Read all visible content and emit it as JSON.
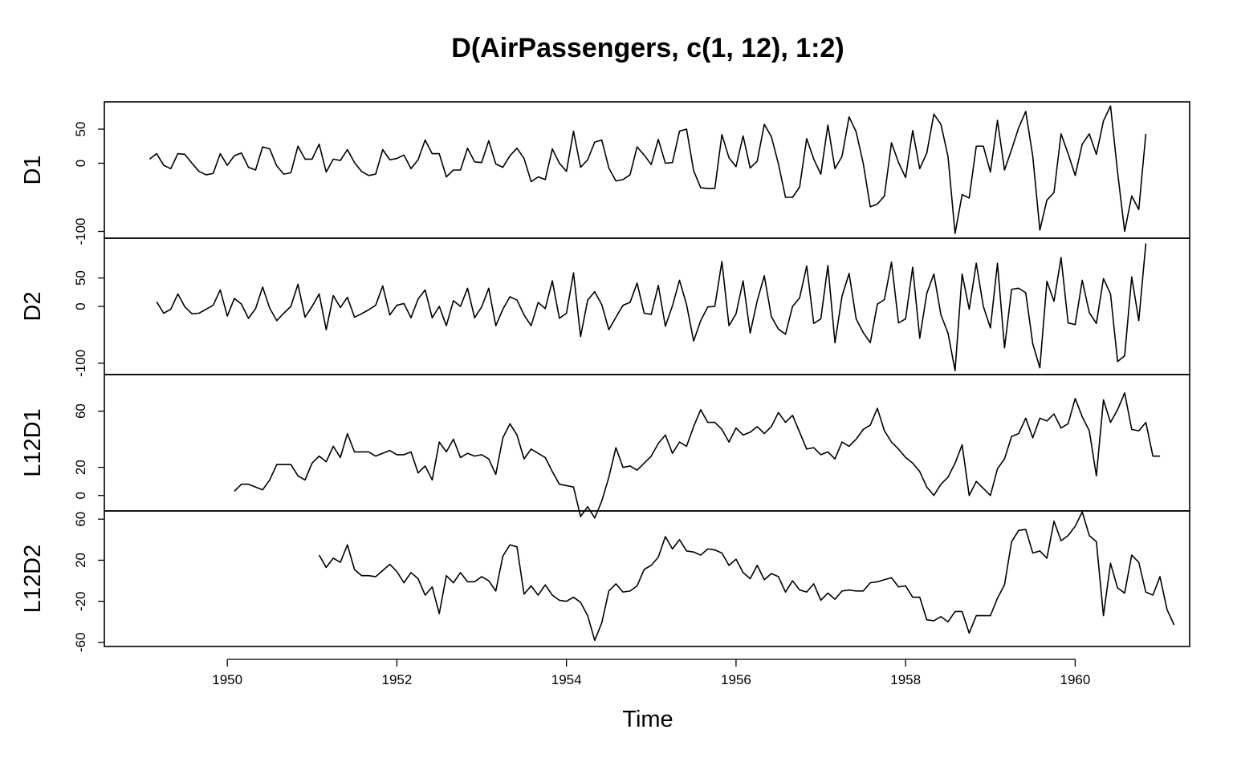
{
  "chart_data": {
    "type": "line",
    "title": "D(AirPassengers, c(1, 12), 1:2)",
    "xlabel": "Time",
    "xlim": [
      1948.55,
      1961.35
    ],
    "x_ticks": [
      1950,
      1952,
      1954,
      1956,
      1958,
      1960
    ],
    "x_tick_labels": [
      "1950",
      "1952",
      "1954",
      "1956",
      "1958",
      "1960"
    ],
    "frequency": 12,
    "grid": false,
    "legend": "none",
    "panels": [
      {
        "name": "D1",
        "ylim": [
          -110,
          90
        ],
        "y_ticks": [
          50,
          0,
          -100
        ],
        "y_tick_labels": [
          "50",
          "0",
          "-100"
        ],
        "start": 1949.0833,
        "values": [
          6,
          14,
          -3,
          -8,
          14,
          13,
          0,
          -12,
          -17,
          -15,
          14,
          -3,
          11,
          15,
          -6,
          -10,
          24,
          21,
          -4,
          -16,
          -14,
          25,
          6,
          6,
          28,
          -13,
          6,
          4,
          20,
          1,
          -12,
          -18,
          -16,
          20,
          5,
          7,
          12,
          -8,
          5,
          34,
          14,
          14,
          -20,
          -10,
          -10,
          22,
          2,
          1,
          33,
          -1,
          -6,
          11,
          22,
          7,
          -27,
          -20,
          -24,
          21,
          0,
          -12,
          47,
          -6,
          5,
          31,
          34,
          -7,
          -26,
          -24,
          -17,
          24,
          12,
          -2,
          35,
          0,
          1,
          47,
          50,
          -11,
          -36,
          -37,
          -37,
          42,
          8,
          -5,
          40,
          -7,
          3,
          57,
          39,
          -1,
          -50,
          -50,
          -35,
          36,
          6,
          -16,
          56,
          -8,
          10,
          68,
          46,
          0,
          -64,
          -60,
          -48,
          30,
          1,
          -21,
          48,
          -8,
          15,
          72,
          57,
          10,
          -103,
          -46,
          -51,
          25,
          25,
          -13,
          63,
          -10,
          20,
          52,
          76,
          10,
          -98,
          -54,
          -43,
          43,
          14,
          -18,
          28,
          43,
          13,
          62,
          84,
          -13,
          -100,
          -48,
          -68,
          43
        ]
      },
      {
        "name": "D2",
        "ylim": [
          -120,
          120
        ],
        "y_ticks": [
          50,
          0,
          -100
        ],
        "y_tick_labels": [
          "50",
          "0",
          "-100"
        ],
        "start": 1949.1667,
        "values": [
          8,
          -12,
          -5,
          22,
          -1,
          -13,
          -12,
          -5,
          2,
          29,
          -17,
          14,
          4,
          -21,
          -4,
          34,
          -3,
          -25,
          -12,
          0,
          39,
          -19,
          0,
          22,
          -41,
          19,
          -2,
          16,
          -19,
          -13,
          -6,
          2,
          36,
          -15,
          2,
          5,
          -20,
          13,
          29,
          -20,
          0,
          -34,
          10,
          0,
          32,
          -20,
          -1,
          32,
          -34,
          -5,
          17,
          11,
          -15,
          -34,
          7,
          -4,
          45,
          -21,
          -12,
          59,
          -53,
          11,
          26,
          3,
          -41,
          -19,
          2,
          7,
          41,
          -12,
          -14,
          37,
          -35,
          1,
          46,
          3,
          -61,
          -25,
          -1,
          0,
          79,
          -34,
          -13,
          45,
          -47,
          10,
          54,
          -18,
          -40,
          -49,
          0,
          15,
          71,
          -30,
          -22,
          72,
          -64,
          18,
          58,
          -22,
          -46,
          -64,
          4,
          12,
          78,
          -29,
          -22,
          69,
          -56,
          23,
          57,
          -15,
          -47,
          -113,
          57,
          -5,
          76,
          0,
          -38,
          76,
          -73,
          30,
          32,
          24,
          -66,
          -108,
          44,
          9,
          86,
          -29,
          -32,
          46,
          -11,
          -30,
          49,
          22,
          -97,
          -87,
          52,
          -25,
          111
        ]
      },
      {
        "name": "L12D1",
        "ylim": [
          -11,
          86
        ],
        "y_ticks": [
          60,
          20,
          0
        ],
        "y_tick_labels": [
          "60",
          "20",
          "0"
        ],
        "start": 1950.0833,
        "values": [
          3,
          8,
          8,
          6,
          4,
          11,
          22,
          22,
          22,
          14,
          11,
          23,
          28,
          24,
          35,
          27,
          44,
          31,
          31,
          31,
          28,
          30,
          32,
          29,
          29,
          31,
          16,
          21,
          11,
          38,
          31,
          40,
          27,
          30,
          28,
          29,
          26,
          15,
          41,
          51,
          43,
          26,
          33,
          30,
          27,
          17,
          8,
          7,
          6,
          -15,
          -8,
          -16,
          -4,
          13,
          34,
          20,
          21,
          18,
          23,
          28,
          37,
          43,
          30,
          38,
          35,
          49,
          61,
          52,
          52,
          47,
          38,
          48,
          43,
          45,
          49,
          44,
          49,
          59,
          52,
          57,
          45,
          33,
          34,
          29,
          31,
          26,
          38,
          35,
          40,
          47,
          50,
          62,
          46,
          38,
          33,
          27,
          23,
          17,
          6,
          0,
          8,
          13,
          23,
          36,
          0,
          10,
          5,
          0,
          19,
          26,
          42,
          44,
          55,
          41,
          55,
          53,
          58,
          48,
          51,
          69,
          56,
          46,
          14,
          68,
          52,
          61,
          73,
          47,
          46,
          52,
          28,
          28
        ]
      },
      {
        "name": "L12D2",
        "ylim": [
          -64,
          68
        ],
        "y_ticks": [
          60,
          20,
          -20,
          -60
        ],
        "y_tick_labels": [
          "60",
          "20",
          "-20",
          "-60"
        ],
        "start": 1951.0833,
        "values": [
          25,
          13,
          22,
          18,
          35,
          11,
          5,
          5,
          4,
          10,
          16,
          9,
          -2,
          8,
          2,
          -14,
          -6,
          -32,
          5,
          -2,
          8,
          -1,
          -1,
          4,
          0,
          -10,
          24,
          35,
          33,
          -13,
          -5,
          -14,
          -4,
          -14,
          -19,
          -20,
          -16,
          -21,
          -34,
          -58,
          -41,
          -10,
          -3,
          -11,
          -10,
          -5,
          11,
          15,
          23,
          43,
          31,
          40,
          29,
          28,
          25,
          31,
          30,
          27,
          15,
          21,
          8,
          2,
          15,
          1,
          7,
          4,
          -11,
          0,
          -9,
          -11,
          -3,
          -19,
          -12,
          -18,
          -10,
          -9,
          -10,
          -10,
          -2,
          -1,
          1,
          3,
          -6,
          -5,
          -16,
          -16,
          -38,
          -39,
          -35,
          -40,
          -30,
          -30,
          -51,
          -34,
          -34,
          -34,
          -17,
          -4,
          38,
          49,
          50,
          27,
          29,
          22,
          58,
          39,
          44,
          53,
          67,
          44,
          38,
          -34,
          17,
          -7,
          -12,
          25,
          18,
          -11,
          -14,
          4,
          -28,
          -43
        ]
      }
    ]
  }
}
